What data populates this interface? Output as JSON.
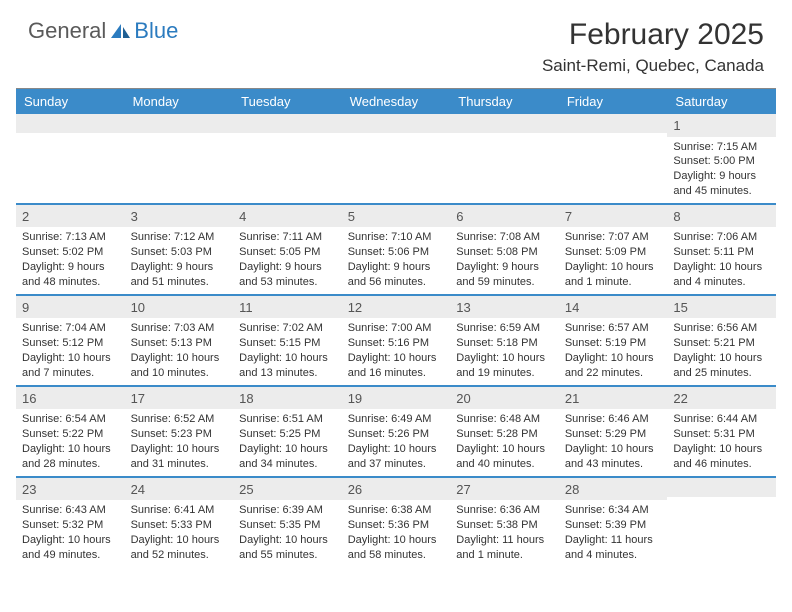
{
  "logo": {
    "general": "General",
    "blue": "Blue"
  },
  "title": "February 2025",
  "location": "Saint-Remi, Quebec, Canada",
  "colors": {
    "header_bg": "#3b8bc9",
    "header_text": "#ffffff",
    "daynum_bg": "#ececec",
    "row_border": "#3b8bc9",
    "text": "#333333",
    "logo_gray": "#5a5a5a",
    "logo_blue": "#2b7bbf"
  },
  "weekdays": [
    "Sunday",
    "Monday",
    "Tuesday",
    "Wednesday",
    "Thursday",
    "Friday",
    "Saturday"
  ],
  "weeks": [
    [
      {
        "n": "",
        "sunrise": "",
        "sunset": "",
        "daylight": ""
      },
      {
        "n": "",
        "sunrise": "",
        "sunset": "",
        "daylight": ""
      },
      {
        "n": "",
        "sunrise": "",
        "sunset": "",
        "daylight": ""
      },
      {
        "n": "",
        "sunrise": "",
        "sunset": "",
        "daylight": ""
      },
      {
        "n": "",
        "sunrise": "",
        "sunset": "",
        "daylight": ""
      },
      {
        "n": "",
        "sunrise": "",
        "sunset": "",
        "daylight": ""
      },
      {
        "n": "1",
        "sunrise": "Sunrise: 7:15 AM",
        "sunset": "Sunset: 5:00 PM",
        "daylight": "Daylight: 9 hours and 45 minutes."
      }
    ],
    [
      {
        "n": "2",
        "sunrise": "Sunrise: 7:13 AM",
        "sunset": "Sunset: 5:02 PM",
        "daylight": "Daylight: 9 hours and 48 minutes."
      },
      {
        "n": "3",
        "sunrise": "Sunrise: 7:12 AM",
        "sunset": "Sunset: 5:03 PM",
        "daylight": "Daylight: 9 hours and 51 minutes."
      },
      {
        "n": "4",
        "sunrise": "Sunrise: 7:11 AM",
        "sunset": "Sunset: 5:05 PM",
        "daylight": "Daylight: 9 hours and 53 minutes."
      },
      {
        "n": "5",
        "sunrise": "Sunrise: 7:10 AM",
        "sunset": "Sunset: 5:06 PM",
        "daylight": "Daylight: 9 hours and 56 minutes."
      },
      {
        "n": "6",
        "sunrise": "Sunrise: 7:08 AM",
        "sunset": "Sunset: 5:08 PM",
        "daylight": "Daylight: 9 hours and 59 minutes."
      },
      {
        "n": "7",
        "sunrise": "Sunrise: 7:07 AM",
        "sunset": "Sunset: 5:09 PM",
        "daylight": "Daylight: 10 hours and 1 minute."
      },
      {
        "n": "8",
        "sunrise": "Sunrise: 7:06 AM",
        "sunset": "Sunset: 5:11 PM",
        "daylight": "Daylight: 10 hours and 4 minutes."
      }
    ],
    [
      {
        "n": "9",
        "sunrise": "Sunrise: 7:04 AM",
        "sunset": "Sunset: 5:12 PM",
        "daylight": "Daylight: 10 hours and 7 minutes."
      },
      {
        "n": "10",
        "sunrise": "Sunrise: 7:03 AM",
        "sunset": "Sunset: 5:13 PM",
        "daylight": "Daylight: 10 hours and 10 minutes."
      },
      {
        "n": "11",
        "sunrise": "Sunrise: 7:02 AM",
        "sunset": "Sunset: 5:15 PM",
        "daylight": "Daylight: 10 hours and 13 minutes."
      },
      {
        "n": "12",
        "sunrise": "Sunrise: 7:00 AM",
        "sunset": "Sunset: 5:16 PM",
        "daylight": "Daylight: 10 hours and 16 minutes."
      },
      {
        "n": "13",
        "sunrise": "Sunrise: 6:59 AM",
        "sunset": "Sunset: 5:18 PM",
        "daylight": "Daylight: 10 hours and 19 minutes."
      },
      {
        "n": "14",
        "sunrise": "Sunrise: 6:57 AM",
        "sunset": "Sunset: 5:19 PM",
        "daylight": "Daylight: 10 hours and 22 minutes."
      },
      {
        "n": "15",
        "sunrise": "Sunrise: 6:56 AM",
        "sunset": "Sunset: 5:21 PM",
        "daylight": "Daylight: 10 hours and 25 minutes."
      }
    ],
    [
      {
        "n": "16",
        "sunrise": "Sunrise: 6:54 AM",
        "sunset": "Sunset: 5:22 PM",
        "daylight": "Daylight: 10 hours and 28 minutes."
      },
      {
        "n": "17",
        "sunrise": "Sunrise: 6:52 AM",
        "sunset": "Sunset: 5:23 PM",
        "daylight": "Daylight: 10 hours and 31 minutes."
      },
      {
        "n": "18",
        "sunrise": "Sunrise: 6:51 AM",
        "sunset": "Sunset: 5:25 PM",
        "daylight": "Daylight: 10 hours and 34 minutes."
      },
      {
        "n": "19",
        "sunrise": "Sunrise: 6:49 AM",
        "sunset": "Sunset: 5:26 PM",
        "daylight": "Daylight: 10 hours and 37 minutes."
      },
      {
        "n": "20",
        "sunrise": "Sunrise: 6:48 AM",
        "sunset": "Sunset: 5:28 PM",
        "daylight": "Daylight: 10 hours and 40 minutes."
      },
      {
        "n": "21",
        "sunrise": "Sunrise: 6:46 AM",
        "sunset": "Sunset: 5:29 PM",
        "daylight": "Daylight: 10 hours and 43 minutes."
      },
      {
        "n": "22",
        "sunrise": "Sunrise: 6:44 AM",
        "sunset": "Sunset: 5:31 PM",
        "daylight": "Daylight: 10 hours and 46 minutes."
      }
    ],
    [
      {
        "n": "23",
        "sunrise": "Sunrise: 6:43 AM",
        "sunset": "Sunset: 5:32 PM",
        "daylight": "Daylight: 10 hours and 49 minutes."
      },
      {
        "n": "24",
        "sunrise": "Sunrise: 6:41 AM",
        "sunset": "Sunset: 5:33 PM",
        "daylight": "Daylight: 10 hours and 52 minutes."
      },
      {
        "n": "25",
        "sunrise": "Sunrise: 6:39 AM",
        "sunset": "Sunset: 5:35 PM",
        "daylight": "Daylight: 10 hours and 55 minutes."
      },
      {
        "n": "26",
        "sunrise": "Sunrise: 6:38 AM",
        "sunset": "Sunset: 5:36 PM",
        "daylight": "Daylight: 10 hours and 58 minutes."
      },
      {
        "n": "27",
        "sunrise": "Sunrise: 6:36 AM",
        "sunset": "Sunset: 5:38 PM",
        "daylight": "Daylight: 11 hours and 1 minute."
      },
      {
        "n": "28",
        "sunrise": "Sunrise: 6:34 AM",
        "sunset": "Sunset: 5:39 PM",
        "daylight": "Daylight: 11 hours and 4 minutes."
      },
      {
        "n": "",
        "sunrise": "",
        "sunset": "",
        "daylight": ""
      }
    ]
  ]
}
